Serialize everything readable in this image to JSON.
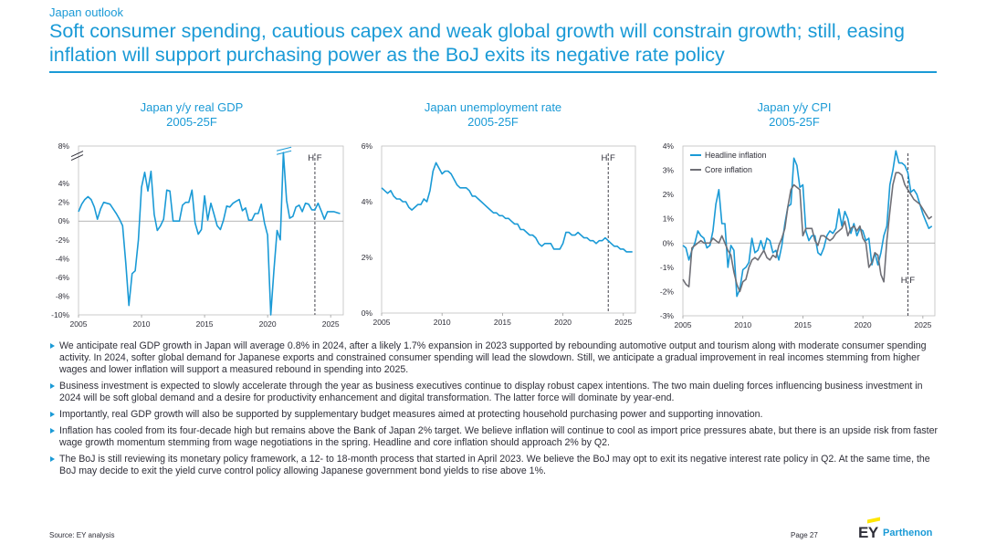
{
  "kicker": "Japan outlook",
  "headline": "Soft consumer spending, cautious capex and weak global growth will constrain growth; still, easing inflation will support purchasing power as the BoJ exits its negative rate policy",
  "colors": {
    "accent": "#1a9ad6",
    "text": "#2e2e38",
    "core": "#6f6f76",
    "logo_yellow": "#ffe600"
  },
  "chart_data": [
    {
      "type": "line",
      "title": "Japan y/y real GDP",
      "subtitle": "2005-25F",
      "xlabel": "",
      "ylabel": "",
      "xlim": [
        2005,
        2026
      ],
      "ylim": [
        -10,
        8
      ],
      "xticks": [
        "2005",
        "2010",
        "2015",
        "2020",
        "2025"
      ],
      "yticks": [
        "8%",
        "4%",
        "2%",
        "0%",
        "-2%",
        "-4%",
        "-6%",
        "-8%",
        "-10%"
      ],
      "y_axis_break": true,
      "forecast_marker": {
        "x": 2023.75,
        "label": "H F"
      },
      "series": [
        {
          "color": "#1a9ad6",
          "x": [
            2005.0,
            2005.25,
            2005.5,
            2005.75,
            2006.0,
            2006.25,
            2006.5,
            2006.75,
            2007.0,
            2007.25,
            2007.5,
            2007.75,
            2008.0,
            2008.25,
            2008.5,
            2008.75,
            2009.0,
            2009.25,
            2009.5,
            2009.75,
            2010.0,
            2010.25,
            2010.5,
            2010.75,
            2011.0,
            2011.25,
            2011.5,
            2011.75,
            2012.0,
            2012.25,
            2012.5,
            2012.75,
            2013.0,
            2013.25,
            2013.5,
            2013.75,
            2014.0,
            2014.25,
            2014.5,
            2014.75,
            2015.0,
            2015.25,
            2015.5,
            2015.75,
            2016.0,
            2016.25,
            2016.5,
            2016.75,
            2017.0,
            2017.25,
            2017.5,
            2017.75,
            2018.0,
            2018.25,
            2018.5,
            2018.75,
            2019.0,
            2019.25,
            2019.5,
            2019.75,
            2020.0,
            2020.25,
            2020.5,
            2020.75,
            2021.0,
            2021.25,
            2021.5,
            2021.75,
            2022.0,
            2022.25,
            2022.5,
            2022.75,
            2023.0,
            2023.25,
            2023.5,
            2023.75,
            2024.0,
            2024.25,
            2024.5,
            2024.75,
            2025.0,
            2025.25,
            2025.5,
            2025.75
          ],
          "y": [
            1.0,
            1.8,
            2.3,
            2.6,
            2.3,
            1.5,
            0.2,
            1.3,
            2.0,
            1.9,
            1.8,
            1.3,
            0.8,
            0.2,
            -0.5,
            -4.5,
            -9.0,
            -5.6,
            -5.3,
            -2.0,
            3.6,
            5.2,
            3.2,
            5.3,
            0.7,
            -1.0,
            -0.5,
            0.2,
            3.3,
            3.2,
            0.0,
            0.0,
            0.0,
            1.7,
            2.0,
            2.0,
            3.3,
            -0.2,
            -1.4,
            -0.9,
            2.7,
            0.1,
            1.9,
            0.7,
            -0.5,
            -0.9,
            0.1,
            1.6,
            1.5,
            1.9,
            2.1,
            2.3,
            1.1,
            1.4,
            0.1,
            0.1,
            0.8,
            0.8,
            1.8,
            -0.2,
            -1.5,
            -10.0,
            -5.3,
            -1.0,
            -2.0,
            7.3,
            2.2,
            0.3,
            0.5,
            1.5,
            1.7,
            1.0,
            1.9,
            1.8,
            1.2,
            1.2,
            1.9,
            1.1,
            0.2,
            1.0,
            1.0,
            1.0,
            0.9,
            0.8
          ]
        }
      ]
    },
    {
      "type": "line",
      "title": "Japan unemployment  rate",
      "subtitle": "2005-25F",
      "xlabel": "",
      "ylabel": "",
      "xlim": [
        2005,
        2026
      ],
      "ylim": [
        0,
        6
      ],
      "xticks": [
        "2005",
        "2010",
        "2015",
        "2020",
        "2025"
      ],
      "yticks": [
        "6%",
        "4%",
        "2%",
        "0%"
      ],
      "forecast_marker": {
        "x": 2023.75,
        "label": "H F"
      },
      "series": [
        {
          "color": "#1a9ad6",
          "x": [
            2005.0,
            2005.25,
            2005.5,
            2005.75,
            2006.0,
            2006.25,
            2006.5,
            2006.75,
            2007.0,
            2007.25,
            2007.5,
            2007.75,
            2008.0,
            2008.25,
            2008.5,
            2008.75,
            2009.0,
            2009.25,
            2009.5,
            2009.75,
            2010.0,
            2010.25,
            2010.5,
            2010.75,
            2011.0,
            2011.25,
            2011.5,
            2011.75,
            2012.0,
            2012.25,
            2012.5,
            2012.75,
            2013.0,
            2013.25,
            2013.5,
            2013.75,
            2014.0,
            2014.25,
            2014.5,
            2014.75,
            2015.0,
            2015.25,
            2015.5,
            2015.75,
            2016.0,
            2016.25,
            2016.5,
            2016.75,
            2017.0,
            2017.25,
            2017.5,
            2017.75,
            2018.0,
            2018.25,
            2018.5,
            2018.75,
            2019.0,
            2019.25,
            2019.5,
            2019.75,
            2020.0,
            2020.25,
            2020.5,
            2020.75,
            2021.0,
            2021.25,
            2021.5,
            2021.75,
            2022.0,
            2022.25,
            2022.5,
            2022.75,
            2023.0,
            2023.25,
            2023.5,
            2023.75,
            2024.0,
            2024.25,
            2024.5,
            2024.75,
            2025.0,
            2025.25,
            2025.5,
            2025.75
          ],
          "y": [
            4.5,
            4.4,
            4.3,
            4.4,
            4.2,
            4.1,
            4.1,
            4.0,
            4.0,
            3.8,
            3.7,
            3.8,
            3.9,
            3.9,
            4.1,
            4.0,
            4.4,
            5.1,
            5.4,
            5.2,
            5.0,
            5.1,
            5.1,
            5.0,
            4.8,
            4.6,
            4.5,
            4.5,
            4.5,
            4.4,
            4.2,
            4.2,
            4.1,
            4.0,
            3.9,
            3.8,
            3.7,
            3.6,
            3.6,
            3.5,
            3.5,
            3.4,
            3.4,
            3.3,
            3.2,
            3.2,
            3.0,
            3.0,
            2.9,
            2.8,
            2.8,
            2.7,
            2.5,
            2.4,
            2.5,
            2.5,
            2.5,
            2.3,
            2.3,
            2.3,
            2.5,
            2.9,
            2.9,
            2.8,
            2.8,
            2.9,
            2.8,
            2.7,
            2.7,
            2.6,
            2.6,
            2.5,
            2.6,
            2.6,
            2.7,
            2.6,
            2.5,
            2.4,
            2.4,
            2.3,
            2.3,
            2.2,
            2.2,
            2.2
          ]
        }
      ]
    },
    {
      "type": "line",
      "title": "Japan y/y CPI",
      "subtitle": "2005-25F",
      "xlabel": "",
      "ylabel": "",
      "xlim": [
        2005,
        2026
      ],
      "ylim": [
        -3,
        4
      ],
      "xticks": [
        "2005",
        "2010",
        "2015",
        "2020",
        "2025"
      ],
      "yticks": [
        "4%",
        "3%",
        "2%",
        "1%",
        "0%",
        "-1%",
        "-2%",
        "-3%"
      ],
      "legend": "top-left",
      "forecast_marker": {
        "x": 2023.75,
        "label": "H F"
      },
      "series": [
        {
          "name": "Headline inflation",
          "color": "#1a9ad6",
          "x": [
            2005.0,
            2005.25,
            2005.5,
            2005.75,
            2006.0,
            2006.25,
            2006.5,
            2006.75,
            2007.0,
            2007.25,
            2007.5,
            2007.75,
            2008.0,
            2008.25,
            2008.5,
            2008.75,
            2009.0,
            2009.25,
            2009.5,
            2009.75,
            2010.0,
            2010.25,
            2010.5,
            2010.75,
            2011.0,
            2011.25,
            2011.5,
            2011.75,
            2012.0,
            2012.25,
            2012.5,
            2012.75,
            2013.0,
            2013.25,
            2013.5,
            2013.75,
            2014.0,
            2014.25,
            2014.5,
            2014.75,
            2015.0,
            2015.25,
            2015.5,
            2015.75,
            2016.0,
            2016.25,
            2016.5,
            2016.75,
            2017.0,
            2017.25,
            2017.5,
            2017.75,
            2018.0,
            2018.25,
            2018.5,
            2018.75,
            2019.0,
            2019.25,
            2019.5,
            2019.75,
            2020.0,
            2020.25,
            2020.5,
            2020.75,
            2021.0,
            2021.25,
            2021.5,
            2021.75,
            2022.0,
            2022.25,
            2022.5,
            2022.75,
            2023.0,
            2023.25,
            2023.5,
            2023.75,
            2024.0,
            2024.25,
            2024.5,
            2024.75,
            2025.0,
            2025.25,
            2025.5,
            2025.75
          ],
          "y": [
            -0.1,
            -0.2,
            -0.7,
            -0.3,
            0.0,
            0.5,
            0.3,
            0.2,
            -0.2,
            -0.1,
            0.5,
            1.6,
            2.2,
            0.8,
            0.8,
            -1.0,
            -0.1,
            -0.3,
            -2.2,
            -1.9,
            -1.1,
            -1.0,
            -0.8,
            0.2,
            -0.4,
            -0.3,
            0.1,
            -0.3,
            0.2,
            0.1,
            -0.4,
            -0.3,
            -0.7,
            -0.1,
            0.8,
            1.5,
            1.6,
            3.5,
            3.2,
            2.3,
            2.4,
            0.5,
            0.1,
            0.3,
            0.3,
            -0.4,
            -0.5,
            -0.2,
            0.3,
            0.5,
            0.4,
            0.6,
            1.4,
            0.7,
            1.3,
            1.0,
            0.4,
            0.8,
            0.3,
            0.6,
            0.5,
            0.1,
            0.2,
            -0.9,
            -0.4,
            -0.9,
            -0.4,
            0.3,
            0.7,
            2.4,
            3.0,
            3.8,
            3.3,
            3.3,
            3.2,
            2.9,
            2.1,
            2.2,
            2.0,
            1.6,
            1.2,
            0.9,
            0.6,
            0.7
          ]
        },
        {
          "name": "Core inflation",
          "color": "#6f6f76",
          "x": [
            2005.0,
            2005.25,
            2005.5,
            2005.75,
            2006.0,
            2006.25,
            2006.5,
            2006.75,
            2007.0,
            2007.25,
            2007.5,
            2007.75,
            2008.0,
            2008.25,
            2008.5,
            2008.75,
            2009.0,
            2009.25,
            2009.5,
            2009.75,
            2010.0,
            2010.25,
            2010.5,
            2010.75,
            2011.0,
            2011.25,
            2011.5,
            2011.75,
            2012.0,
            2012.25,
            2012.5,
            2012.75,
            2013.0,
            2013.25,
            2013.5,
            2013.75,
            2014.0,
            2014.25,
            2014.5,
            2014.75,
            2015.0,
            2015.25,
            2015.5,
            2015.75,
            2016.0,
            2016.25,
            2016.5,
            2016.75,
            2017.0,
            2017.25,
            2017.5,
            2017.75,
            2018.0,
            2018.25,
            2018.5,
            2018.75,
            2019.0,
            2019.25,
            2019.5,
            2019.75,
            2020.0,
            2020.25,
            2020.5,
            2020.75,
            2021.0,
            2021.25,
            2021.5,
            2021.75,
            2022.0,
            2022.25,
            2022.5,
            2022.75,
            2023.0,
            2023.25,
            2023.5,
            2023.75,
            2024.0,
            2024.25,
            2024.5,
            2024.75,
            2025.0,
            2025.25,
            2025.5,
            2025.75
          ],
          "y": [
            -1.5,
            -1.7,
            -1.8,
            -0.2,
            -0.1,
            0.0,
            0.1,
            0.0,
            0.0,
            0.0,
            0.2,
            0.1,
            0.0,
            0.3,
            0.0,
            -0.3,
            -0.5,
            -1.2,
            -1.7,
            -2.0,
            -1.6,
            -1.5,
            -1.0,
            -0.7,
            -0.6,
            -0.7,
            -0.5,
            -0.3,
            -0.6,
            -0.7,
            -0.5,
            -0.6,
            -0.1,
            0.2,
            0.6,
            1.5,
            2.2,
            2.4,
            2.3,
            2.2,
            0.3,
            0.6,
            0.6,
            0.6,
            0.1,
            -0.1,
            0.3,
            0.3,
            0.2,
            0.1,
            0.2,
            0.4,
            0.5,
            0.6,
            0.9,
            0.3,
            0.6,
            0.7,
            0.5,
            0.7,
            0.2,
            0.0,
            -1.0,
            -0.8,
            -0.4,
            -0.5,
            -1.3,
            -1.6,
            0.1,
            1.3,
            2.4,
            2.9,
            2.9,
            2.8,
            2.4,
            2.2,
            2.0,
            1.8,
            1.7,
            1.6,
            1.4,
            1.2,
            1.0,
            1.1
          ]
        }
      ]
    }
  ],
  "bullets": [
    "We anticipate real GDP growth in Japan will average 0.8% in 2024, after a likely 1.7% expansion in 2023 supported by rebounding automotive output and tourism along with moderate consumer spending activity. In 2024, softer global demand for Japanese exports and constrained consumer spending will lead the slowdown. Still, we anticipate a gradual improvement in real incomes stemming from higher wages and lower inflation will support a measured rebound in spending into 2025.",
    "Business investment is expected to slowly accelerate through the year as business executives continue to display robust capex intentions. The two main dueling forces influencing business investment in 2024 will be soft global demand and a desire for productivity enhancement and digital transformation. The latter force will dominate by year-end.",
    "Importantly, real GDP growth will also be supported by supplementary budget measures aimed at protecting household purchasing power and supporting innovation.",
    "Inflation has cooled from its four-decade high but remains above the Bank of Japan 2% target. We believe inflation will continue to cool as import price pressures abate, but there is an upside risk from faster wage growth momentum stemming from wage negotiations in the spring. Headline and core inflation should approach 2% by Q2.",
    "The BoJ is still reviewing its monetary policy framework, a 12- to 18-month process that started in April 2023. We believe the BoJ may opt to exit its negative interest rate policy in Q2. At the same time, the BoJ may decide to exit the yield curve control policy allowing Japanese government bond yields to rise above 1%."
  ],
  "footer": {
    "source": "Source:  EY analysis",
    "page": "Page 27",
    "logo_ey": "EY",
    "logo_parthenon": "Parthenon"
  }
}
